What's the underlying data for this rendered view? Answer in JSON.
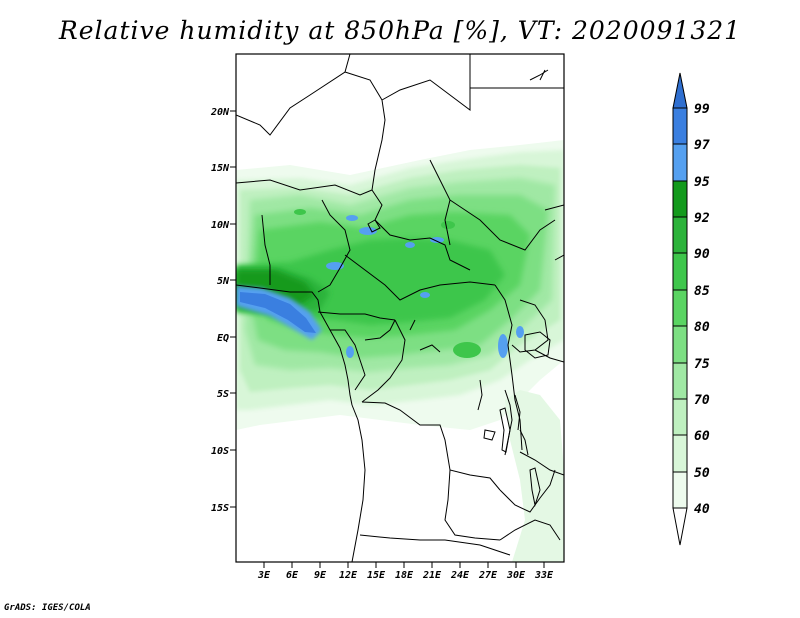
{
  "title": "Relative humidity at 850hPa [%], VT: 2020091321",
  "credit": "GrADS: IGES/COLA",
  "map": {
    "lat_labels": [
      "20N",
      "15N",
      "10N",
      "5N",
      "EQ",
      "5S",
      "10S",
      "15S"
    ],
    "lon_labels": [
      "3E",
      "6E",
      "9E",
      "12E",
      "15E",
      "18E",
      "21E",
      "24E",
      "27E",
      "30E",
      "33E"
    ]
  },
  "colorbar": {
    "labels": [
      "99",
      "97",
      "95",
      "92",
      "90",
      "85",
      "80",
      "75",
      "70",
      "60",
      "50",
      "40"
    ],
    "colors": {
      "above_99": "#2f6fd0",
      "97_99": "#3a7fe0",
      "95_97": "#55a0f0",
      "92_95": "#139a1c",
      "90_92": "#2cb33a",
      "85_90": "#3ec64b",
      "80_85": "#5ad462",
      "75_80": "#7ddf83",
      "70_75": "#a0e8a4",
      "60_70": "#bff0c0",
      "50_60": "#d8f6d8",
      "40_50": "#eefbee"
    }
  }
}
